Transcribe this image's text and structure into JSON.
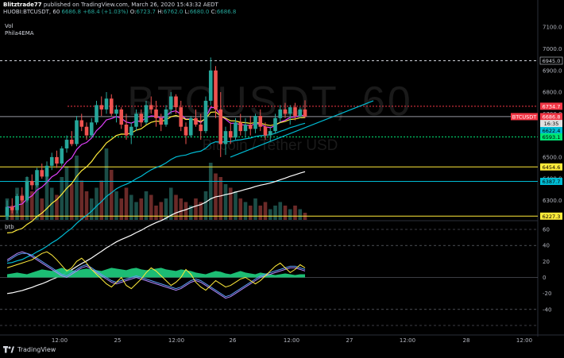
{
  "header": {
    "author": "Blitztrade77",
    "published_text": "published on TradingView.com, March 26, 2020 15:43:32 AEDT",
    "symbol": "HUOBI:BTCUSDT, 60",
    "price": "6686.8",
    "change": "+68.4 (+1.03%)",
    "o_label": "O:",
    "o_value": "6723.7",
    "h_label": "H:",
    "h_value": "6762.0",
    "l_label": "L:",
    "l_value": "6680.0",
    "c_label": "C:",
    "c_value": "6686.8"
  },
  "indicators": {
    "vol": "Vol",
    "ema": "Phila4EMA",
    "lower": "btb"
  },
  "watermark": {
    "symbol": "BTCUSDT, 60",
    "desc": "Bitcoin / Tether USD"
  },
  "footer": {
    "brand": "TradingView"
  },
  "colors": {
    "up": "#26a69a",
    "down": "#ef5350",
    "cyan": "#00bcd4",
    "yellow": "#ffeb3b",
    "green": "#00e676",
    "magenta": "#e040fb",
    "white": "#ffffff",
    "red_line": "#f23645"
  },
  "price_axis": [
    "7100.0",
    "7000.0",
    "6900.0",
    "6800.0",
    "6700.0",
    "6600.0",
    "6500.0",
    "6400.0",
    "6300.0"
  ],
  "osc_axis": [
    "60",
    "40",
    "20",
    "0",
    "-20",
    "-40"
  ],
  "time_axis": [
    "12:00",
    "25",
    "12:00",
    "26",
    "12:00",
    "27",
    "12:00",
    "28",
    "12:00"
  ],
  "price_tags": [
    {
      "text": "6945.0",
      "value": 6945.0,
      "kind": "dashed-white"
    },
    {
      "text": "6734.7",
      "value": 6734.7,
      "kind": "red"
    },
    {
      "text": "BTCUSDT",
      "value": 6686.8,
      "kind": "symbol"
    },
    {
      "text": "6686.8",
      "value": 6686.8,
      "kind": "price"
    },
    {
      "text": "16:35",
      "value": 6655,
      "kind": "timer"
    },
    {
      "text": "6622.4",
      "value": 6622.4,
      "kind": "cyan"
    },
    {
      "text": "6593.1",
      "value": 6593.1,
      "kind": "green"
    },
    {
      "text": "6454.6",
      "value": 6454.6,
      "kind": "yellow"
    },
    {
      "text": "6387.7",
      "value": 6387.7,
      "kind": "cyan"
    },
    {
      "text": "6227.3",
      "value": 6227.3,
      "kind": "yellow"
    }
  ],
  "chart_data": {
    "type": "candlestick",
    "ylim": [
      6210,
      7130
    ],
    "candles": [
      [
        6225,
        6300,
        6210,
        6270
      ],
      [
        6270,
        6310,
        6240,
        6255
      ],
      [
        6255,
        6330,
        6240,
        6320
      ],
      [
        6320,
        6360,
        6290,
        6300
      ],
      [
        6300,
        6410,
        6290,
        6390
      ],
      [
        6390,
        6420,
        6350,
        6370
      ],
      [
        6370,
        6450,
        6360,
        6440
      ],
      [
        6440,
        6470,
        6400,
        6410
      ],
      [
        6410,
        6480,
        6380,
        6460
      ],
      [
        6460,
        6520,
        6440,
        6500
      ],
      [
        6500,
        6530,
        6450,
        6470
      ],
      [
        6470,
        6550,
        6460,
        6540
      ],
      [
        6540,
        6600,
        6520,
        6580
      ],
      [
        6580,
        6620,
        6550,
        6560
      ],
      [
        6560,
        6690,
        6550,
        6670
      ],
      [
        6670,
        6700,
        6620,
        6640
      ],
      [
        6640,
        6660,
        6580,
        6600
      ],
      [
        6600,
        6680,
        6590,
        6660
      ],
      [
        6660,
        6760,
        6650,
        6740
      ],
      [
        6740,
        6780,
        6690,
        6720
      ],
      [
        6720,
        6800,
        6700,
        6770
      ],
      [
        6770,
        6790,
        6690,
        6700
      ],
      [
        6700,
        6740,
        6660,
        6720
      ],
      [
        6720,
        6730,
        6630,
        6650
      ],
      [
        6650,
        6700,
        6580,
        6600
      ],
      [
        6600,
        6660,
        6560,
        6640
      ],
      [
        6640,
        6720,
        6620,
        6700
      ],
      [
        6700,
        6720,
        6640,
        6660
      ],
      [
        6660,
        6760,
        6650,
        6740
      ],
      [
        6740,
        6780,
        6700,
        6720
      ],
      [
        6720,
        6760,
        6640,
        6680
      ],
      [
        6680,
        6700,
        6620,
        6650
      ],
      [
        6650,
        6740,
        6640,
        6720
      ],
      [
        6720,
        6800,
        6700,
        6780
      ],
      [
        6780,
        6790,
        6700,
        6730
      ],
      [
        6730,
        6760,
        6620,
        6640
      ],
      [
        6640,
        6660,
        6560,
        6600
      ],
      [
        6600,
        6690,
        6590,
        6680
      ],
      [
        6680,
        6720,
        6640,
        6650
      ],
      [
        6650,
        6700,
        6580,
        6620
      ],
      [
        6620,
        6780,
        6610,
        6760
      ],
      [
        6760,
        6960,
        6740,
        6900
      ],
      [
        6900,
        6920,
        6680,
        6720
      ],
      [
        6720,
        6800,
        6500,
        6560
      ],
      [
        6560,
        6640,
        6510,
        6620
      ],
      [
        6620,
        6660,
        6560,
        6590
      ],
      [
        6590,
        6680,
        6580,
        6660
      ],
      [
        6660,
        6700,
        6600,
        6620
      ],
      [
        6620,
        6680,
        6590,
        6650
      ],
      [
        6650,
        6690,
        6600,
        6630
      ],
      [
        6630,
        6700,
        6610,
        6690
      ],
      [
        6690,
        6720,
        6620,
        6640
      ],
      [
        6640,
        6660,
        6580,
        6600
      ],
      [
        6600,
        6640,
        6570,
        6620
      ],
      [
        6620,
        6700,
        6610,
        6680
      ],
      [
        6680,
        6740,
        6660,
        6720
      ],
      [
        6720,
        6750,
        6680,
        6700
      ],
      [
        6700,
        6740,
        6650,
        6730
      ],
      [
        6730,
        6750,
        6670,
        6690
      ],
      [
        6690,
        6730,
        6680,
        6720
      ],
      [
        6720,
        6762,
        6680,
        6687
      ]
    ],
    "volumes": [
      60,
      40,
      90,
      70,
      120,
      80,
      100,
      60,
      140,
      90,
      70,
      120,
      150,
      100,
      180,
      110,
      80,
      60,
      90,
      110,
      200,
      140,
      80,
      60,
      90,
      70,
      50,
      60,
      80,
      70,
      40,
      50,
      60,
      90,
      70,
      60,
      50,
      40,
      60,
      50,
      80,
      160,
      130,
      120,
      100,
      90,
      80,
      60,
      50,
      40,
      60,
      40,
      50,
      30,
      40,
      50,
      40,
      30,
      40,
      30,
      20
    ],
    "osc_ylim": [
      -60,
      60
    ],
    "osc_area": [
      4,
      5,
      6,
      5,
      4,
      6,
      8,
      10,
      9,
      8,
      10,
      12,
      10,
      9,
      8,
      10,
      11,
      10,
      9,
      8,
      10,
      12,
      11,
      10,
      9,
      11,
      12,
      10,
      9,
      10,
      11,
      12,
      10,
      9,
      8,
      10,
      9,
      8,
      6,
      5,
      4,
      6,
      8,
      7,
      5,
      4,
      6,
      8,
      6,
      5,
      4,
      6,
      5,
      4,
      3,
      4,
      5,
      4,
      3,
      4,
      4
    ],
    "osc_yellow": [
      12,
      14,
      16,
      18,
      20,
      22,
      26,
      30,
      32,
      28,
      22,
      15,
      8,
      12,
      20,
      24,
      18,
      10,
      4,
      -2,
      -8,
      -12,
      -6,
      0,
      -10,
      -14,
      -8,
      -2,
      6,
      12,
      8,
      2,
      -4,
      -10,
      -6,
      0,
      10,
      4,
      -6,
      -12,
      -16,
      -10,
      -4,
      -8,
      -12,
      -10,
      -6,
      -2,
      0,
      -4,
      -8,
      -4,
      2,
      8,
      14,
      18,
      12,
      6,
      10,
      16,
      12
    ],
    "osc_blue": [
      20,
      24,
      28,
      30,
      30,
      28,
      24,
      20,
      16,
      12,
      8,
      4,
      2,
      6,
      10,
      14,
      16,
      12,
      8,
      4,
      0,
      -4,
      -6,
      -4,
      -2,
      0,
      2,
      0,
      -2,
      -4,
      -6,
      -8,
      -10,
      -12,
      -14,
      -12,
      -8,
      -4,
      -2,
      -4,
      -8,
      -12,
      -16,
      -20,
      -24,
      -22,
      -18,
      -14,
      -10,
      -6,
      -2,
      2,
      4,
      6,
      8,
      10,
      12,
      14,
      14,
      12,
      10
    ],
    "osc_magenta": [
      22,
      26,
      30,
      32,
      30,
      26,
      22,
      18,
      14,
      10,
      6,
      2,
      0,
      4,
      8,
      12,
      14,
      10,
      6,
      2,
      -2,
      -6,
      -8,
      -6,
      -4,
      -2,
      0,
      -2,
      -4,
      -6,
      -8,
      -10,
      -12,
      -14,
      -16,
      -14,
      -10,
      -6,
      -4,
      -6,
      -10,
      -14,
      -18,
      -22,
      -26,
      -24,
      -20,
      -16,
      -12,
      -8,
      -4,
      0,
      2,
      4,
      6,
      8,
      10,
      12,
      12,
      10,
      8
    ]
  }
}
